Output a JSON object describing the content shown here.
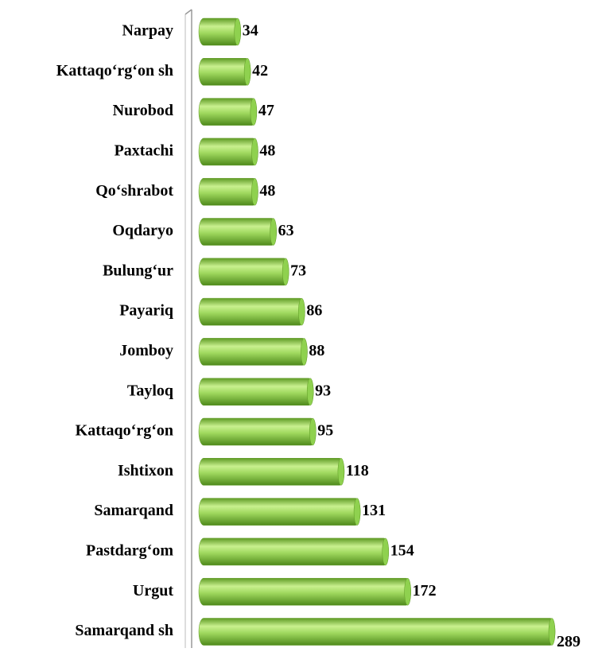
{
  "chart_data": {
    "type": "bar",
    "orientation": "horizontal",
    "categories": [
      "Narpay",
      "Kattaqo‘rg‘on sh",
      "Nurobod",
      "Paxtachi",
      "Qo‘shrabot",
      "Oqdaryo",
      "Bulung‘ur",
      "Payariq",
      "Jomboy",
      "Tayloq",
      "Kattaqo‘rg‘on",
      "Ishtixon",
      "Samarqand",
      "Pastdarg‘om",
      "Urgut",
      "Samarqand sh"
    ],
    "values": [
      34,
      42,
      47,
      48,
      48,
      63,
      73,
      86,
      88,
      93,
      95,
      118,
      131,
      154,
      172,
      289
    ],
    "color": "#8fd14f"
  }
}
